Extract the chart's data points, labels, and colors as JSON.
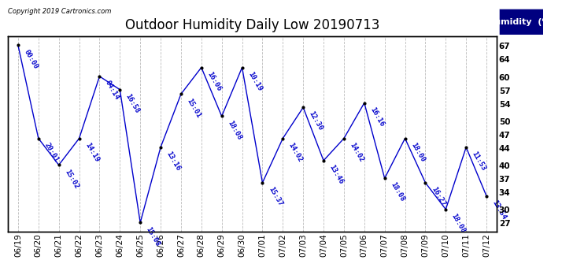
{
  "title": "Outdoor Humidity Daily Low 20190713",
  "copyright": "Copyright 2019 Cartronics.com",
  "legend_label": "Humidity  (%)",
  "line_color": "#0000cc",
  "point_color": "#000000",
  "label_color": "#0000cc",
  "plot_bg_color": "#ffffff",
  "fig_bg_color": "#ffffff",
  "border_color": "#000000",
  "ylim": [
    25,
    69
  ],
  "yticks": [
    27,
    30,
    34,
    37,
    40,
    44,
    47,
    50,
    54,
    57,
    60,
    64,
    67
  ],
  "dates": [
    "06/19",
    "06/20",
    "06/21",
    "06/22",
    "06/23",
    "06/24",
    "06/25",
    "06/26",
    "06/27",
    "06/28",
    "06/29",
    "06/30",
    "07/01",
    "07/02",
    "07/03",
    "07/04",
    "07/05",
    "07/06",
    "07/07",
    "07/08",
    "07/09",
    "07/10",
    "07/11",
    "07/12"
  ],
  "humidity": [
    67,
    46,
    40,
    46,
    60,
    57,
    27,
    44,
    56,
    62,
    51,
    62,
    36,
    46,
    53,
    41,
    46,
    54,
    37,
    46,
    36,
    30,
    44,
    33
  ],
  "time_labels": [
    "00:00",
    "20:01",
    "15:02",
    "14:19",
    "04:14",
    "16:58",
    "15:08",
    "13:16",
    "15:01",
    "16:06",
    "18:08",
    "10:19",
    "15:37",
    "14:02",
    "12:30",
    "13:46",
    "14:02",
    "16:16",
    "18:08",
    "18:00",
    "16:27",
    "18:08",
    "11:53",
    "13:54"
  ],
  "title_fontsize": 12,
  "label_fontsize": 6.5,
  "tick_fontsize": 7.5,
  "legend_box_color": "#000080",
  "legend_text_color": "#ffffff"
}
